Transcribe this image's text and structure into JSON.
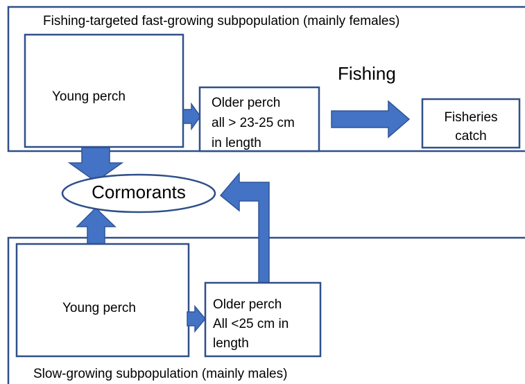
{
  "top_panel": {
    "title": "Fishing-targeted fast-growing subpopulation (mainly females)"
  },
  "bottom_panel": {
    "title": "Slow-growing subpopulation (mainly males)"
  },
  "nodes": {
    "top_young": {
      "label": "Young perch"
    },
    "top_older": {
      "lines": [
        "Older perch",
        "all > 23-25 cm",
        "in length"
      ]
    },
    "fishing": {
      "label": "Fishing"
    },
    "catch": {
      "lines": [
        "Fisheries",
        "catch"
      ]
    },
    "cormorants": {
      "label": "Cormorants"
    },
    "bottom_young": {
      "label": "Young perch"
    },
    "bottom_older": {
      "lines": [
        "Older perch",
        "All <25 cm in",
        "length"
      ]
    }
  }
}
